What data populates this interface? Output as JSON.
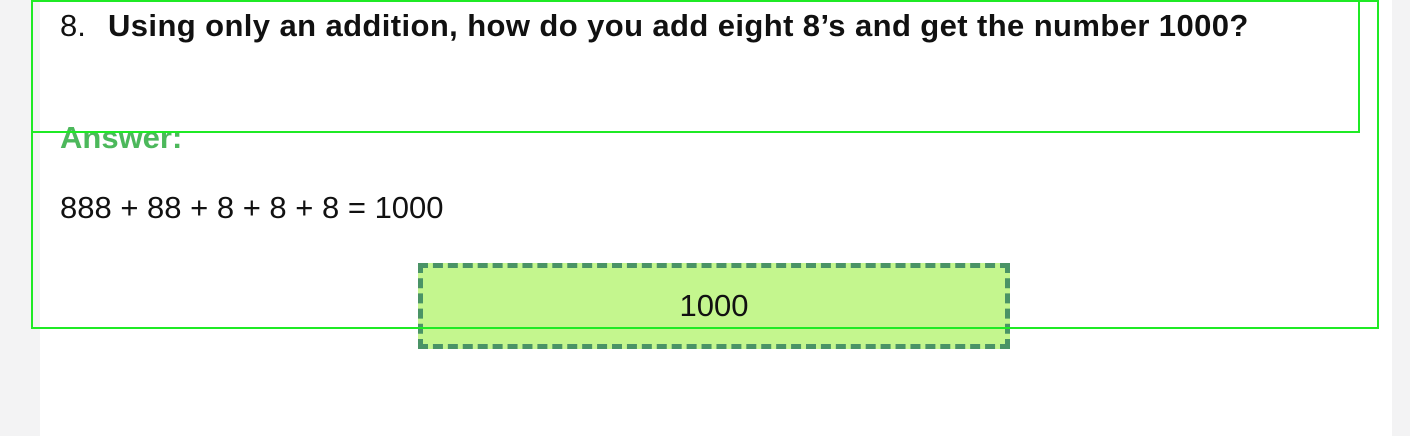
{
  "question": {
    "number": "8.",
    "text": "Using only an addition, how do you add eight 8’s and get the number 1000?"
  },
  "answer": {
    "label": "Answer:",
    "equation": "888 + 88 + 8 + 8 + 8 = 1000",
    "result": "1000"
  },
  "colors": {
    "answer_label": "#4cb85b",
    "result_fill": "#c4f68e",
    "result_border": "#4a9366",
    "highlight_outline": "#1fea25"
  }
}
